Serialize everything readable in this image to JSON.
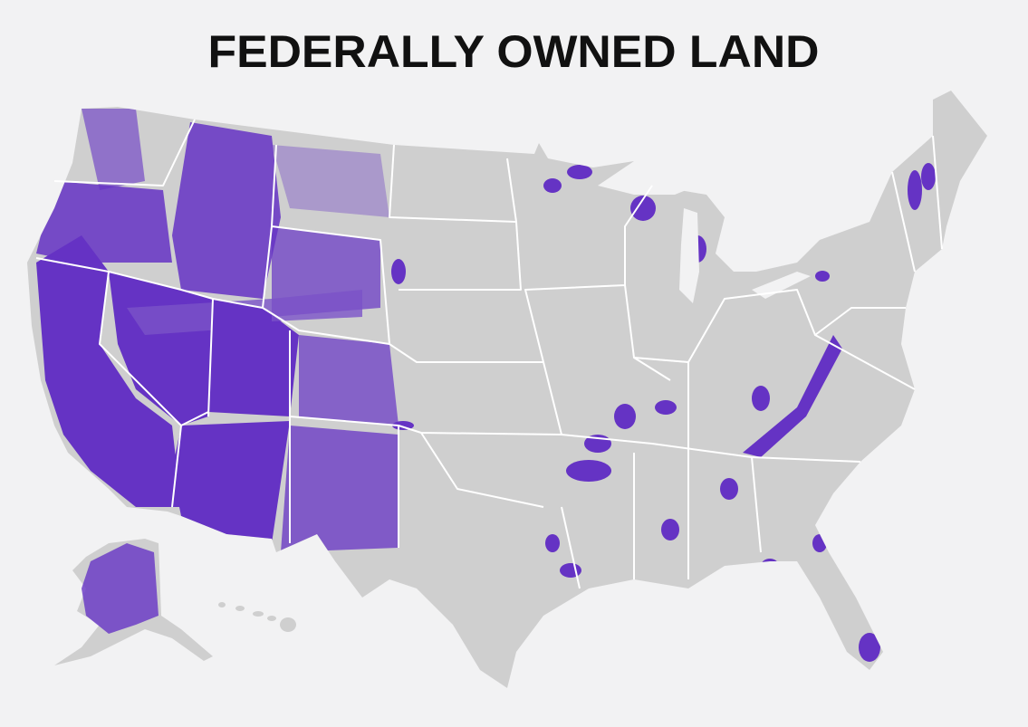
{
  "title": "FEDERALLY OWNED LAND"
}
